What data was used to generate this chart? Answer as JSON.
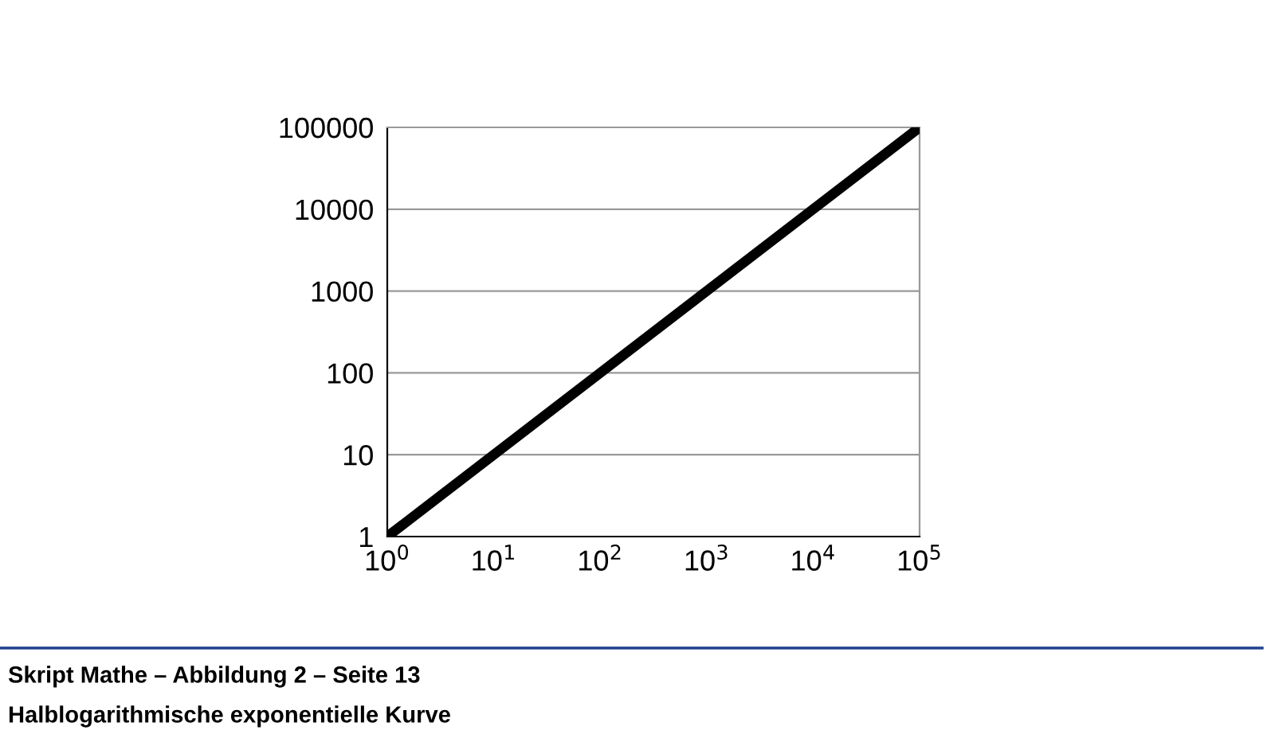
{
  "chart_data": {
    "type": "line",
    "title": "Skript Mathe – Abbildung 2 – Seite 13",
    "subtitle": "Halblogarithmische exponentielle Kurve",
    "x": [
      1,
      100000
    ],
    "series": [
      {
        "color": "#000000",
        "values": [
          1,
          100000
        ]
      }
    ],
    "log": "xy",
    "grid": "y",
    "marker": "none",
    "line_style": "solid",
    "xlim": [
      1,
      100000
    ],
    "ylim": [
      1,
      100000
    ],
    "xticks": [
      {
        "value": 1,
        "label": "10$^{0}$"
      },
      {
        "value": 10,
        "label": "10$^{1}$"
      },
      {
        "value": 100,
        "label": "10$^{2}$"
      },
      {
        "value": 1000,
        "label": "10$^{3}$"
      },
      {
        "value": 10000,
        "label": "10$^{4}$"
      },
      {
        "value": 100000,
        "label": "10$^{5}$"
      }
    ],
    "yticks": [
      1,
      10,
      100,
      1000,
      10000,
      100000
    ]
  }
}
